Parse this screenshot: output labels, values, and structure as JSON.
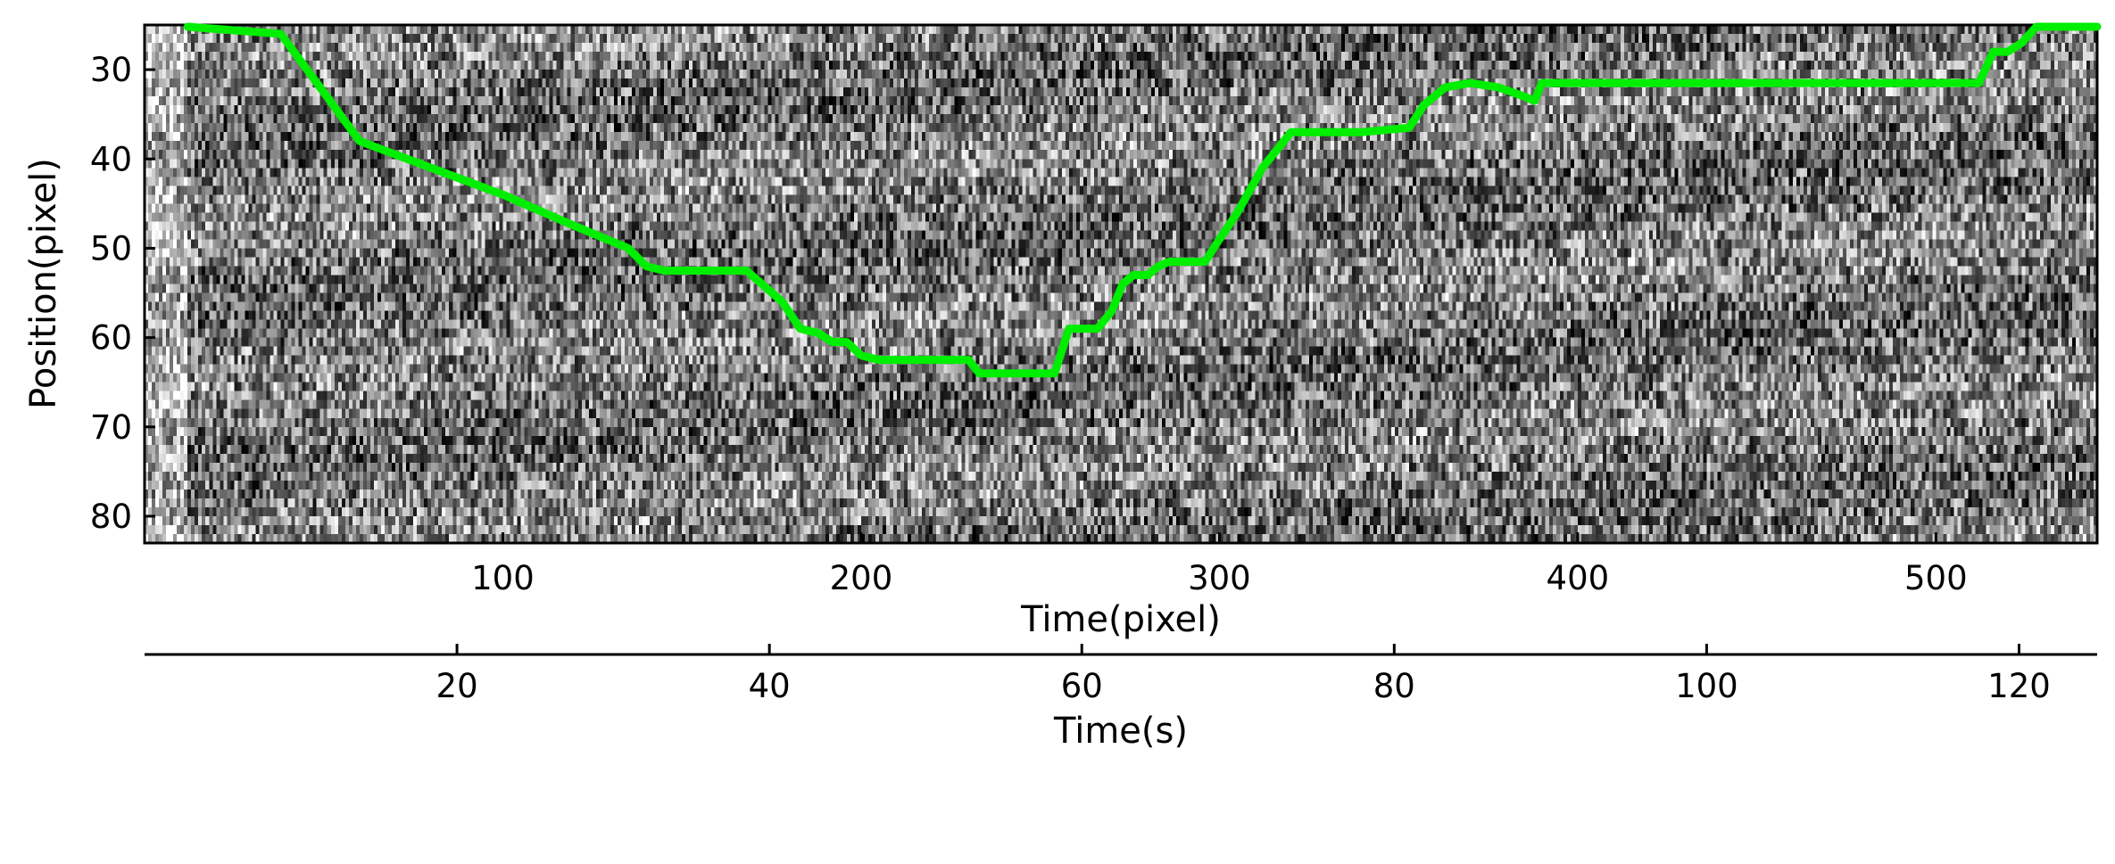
{
  "chart_data": {
    "type": "line",
    "image_type": "kymograph (grayscale noise background)",
    "xlabel": "Time(pixel)",
    "ylabel": "Position(pixel)",
    "xlim": [
      0,
      545
    ],
    "ylim": [
      83,
      25
    ],
    "y_inverted": true,
    "xticks": [
      100,
      200,
      300,
      400,
      500
    ],
    "yticks": [
      30,
      40,
      50,
      60,
      70,
      80
    ],
    "secondary_x_axis": {
      "label": "Time(s)",
      "lim": [
        0,
        125
      ],
      "ticks": [
        20,
        40,
        60,
        80,
        100,
        120
      ]
    },
    "series": [
      {
        "color": "#00ee00",
        "x": [
          12,
          38,
          60,
          80,
          100,
          120,
          135,
          140,
          145,
          160,
          168,
          178,
          183,
          188,
          192,
          196,
          200,
          205,
          215,
          225,
          230,
          233,
          240,
          250,
          254,
          258,
          262,
          266,
          270,
          273,
          276,
          280,
          283,
          286,
          290,
          296,
          300,
          305,
          312,
          320,
          330,
          340,
          353,
          357,
          363,
          370,
          378,
          385,
          388,
          390,
          395,
          410,
          440,
          470,
          500,
          512,
          516,
          520,
          524,
          528,
          532,
          534,
          545
        ],
        "y": [
          25,
          26,
          38,
          41,
          44,
          47.5,
          50,
          52,
          52.5,
          52.5,
          52.5,
          56,
          59,
          59.5,
          60.5,
          60.5,
          62,
          62.5,
          62.5,
          62.5,
          62.5,
          64,
          64,
          64,
          64,
          59,
          59,
          59,
          57,
          54,
          53,
          53,
          52,
          51.5,
          51.5,
          51.5,
          49,
          46,
          41,
          37,
          37,
          37,
          36.5,
          34,
          32,
          31.5,
          32,
          33,
          33.5,
          31.5,
          31.5,
          31.5,
          31.5,
          31.5,
          31.5,
          31.5,
          28,
          28,
          27,
          25,
          25,
          25,
          25
        ]
      }
    ]
  }
}
